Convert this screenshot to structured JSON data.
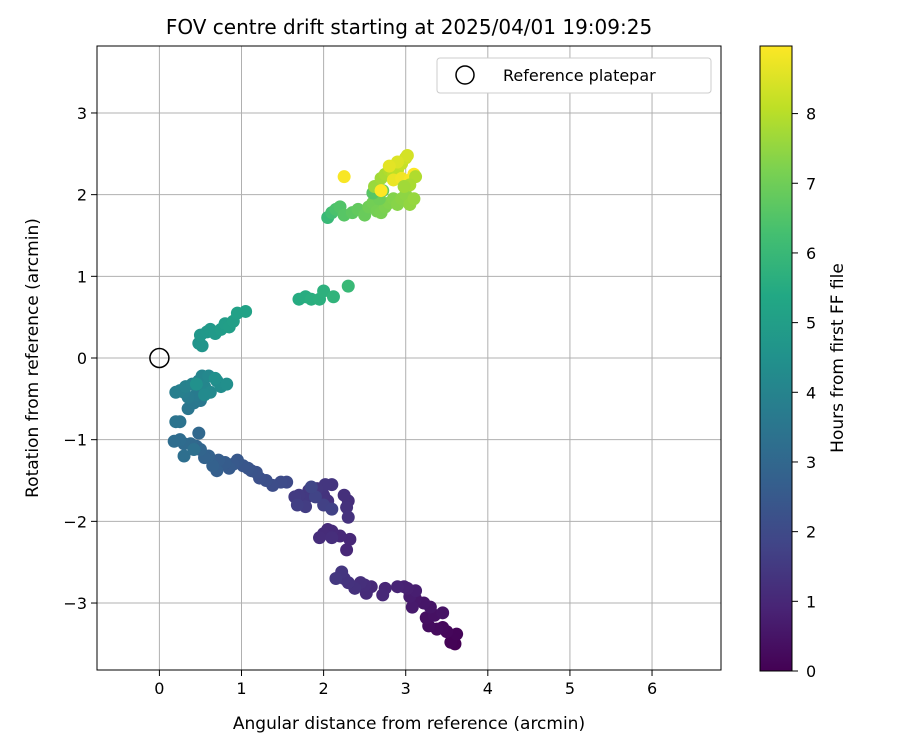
{
  "chart_data": {
    "type": "scatter",
    "title": "FOV centre drift starting at 2025/04/01 19:09:25",
    "xlabel": "Angular distance from reference (arcmin)",
    "ylabel": "Rotation from reference (arcmin)",
    "xlim": [
      -0.76,
      6.84
    ],
    "ylim": [
      -3.82,
      3.82
    ],
    "xticks": [
      0,
      1,
      2,
      3,
      4,
      5,
      6
    ],
    "yticks": [
      -3,
      -2,
      -1,
      0,
      1,
      2,
      3
    ],
    "grid": true,
    "legend": {
      "position": "top-right",
      "entries": [
        "Reference platepar"
      ]
    },
    "reference": {
      "x": 0,
      "y": 0,
      "marker": "open-circle"
    },
    "colorbar": {
      "label": "Hours from first FF file",
      "colormap": "viridis",
      "range": [
        0,
        8.97
      ],
      "ticks": [
        0,
        1,
        2,
        3,
        4,
        5,
        6,
        7,
        8
      ]
    },
    "series": [
      {
        "points": [
          [
            3.6,
            -3.5
          ],
          [
            3.55,
            -3.48
          ],
          [
            3.62,
            -3.38
          ],
          [
            3.5,
            -3.35
          ],
          [
            3.45,
            -3.3
          ],
          [
            3.38,
            -3.32
          ],
          [
            3.28,
            -3.28
          ],
          [
            3.25,
            -3.18
          ],
          [
            3.35,
            -3.15
          ],
          [
            3.45,
            -3.12
          ],
          [
            3.3,
            -3.05
          ],
          [
            3.22,
            -3.0
          ],
          [
            3.12,
            -2.95
          ],
          [
            3.08,
            -3.05
          ],
          [
            3.05,
            -2.92
          ],
          [
            3.12,
            -2.85
          ],
          [
            3.02,
            -2.82
          ],
          [
            2.98,
            -2.8
          ],
          [
            2.9,
            -2.8
          ],
          [
            2.75,
            -2.82
          ],
          [
            2.72,
            -2.9
          ],
          [
            2.58,
            -2.8
          ],
          [
            2.52,
            -2.88
          ],
          [
            2.5,
            -2.78
          ],
          [
            2.45,
            -2.75
          ],
          [
            2.38,
            -2.82
          ],
          [
            2.3,
            -2.75
          ],
          [
            2.25,
            -2.7
          ],
          [
            2.22,
            -2.62
          ],
          [
            2.15,
            -2.7
          ],
          [
            2.28,
            -2.35
          ],
          [
            2.32,
            -2.22
          ],
          [
            2.2,
            -2.18
          ],
          [
            2.1,
            -2.12
          ],
          [
            2.05,
            -2.1
          ],
          [
            2.0,
            -2.15
          ],
          [
            1.95,
            -2.2
          ],
          [
            2.1,
            -2.2
          ],
          [
            2.3,
            -1.75
          ],
          [
            2.25,
            -1.68
          ],
          [
            2.28,
            -1.83
          ],
          [
            2.3,
            -1.95
          ],
          [
            2.05,
            -1.75
          ],
          [
            2.0,
            -1.68
          ],
          [
            1.95,
            -1.62
          ],
          [
            2.1,
            -1.55
          ],
          [
            2.02,
            -1.55
          ],
          [
            1.92,
            -1.6
          ],
          [
            1.82,
            -1.62
          ],
          [
            1.78,
            -1.72
          ],
          [
            1.7,
            -1.68
          ],
          [
            1.65,
            -1.7
          ],
          [
            1.78,
            -1.82
          ],
          [
            1.68,
            -1.8
          ],
          [
            2.0,
            -1.8
          ],
          [
            2.1,
            -1.85
          ],
          [
            1.9,
            -1.7
          ],
          [
            1.85,
            -1.58
          ],
          [
            1.55,
            -1.52
          ],
          [
            1.48,
            -1.52
          ],
          [
            1.38,
            -1.56
          ],
          [
            1.3,
            -1.5
          ],
          [
            1.22,
            -1.47
          ],
          [
            1.18,
            -1.4
          ],
          [
            1.12,
            -1.38
          ],
          [
            1.08,
            -1.35
          ],
          [
            1.02,
            -1.32
          ],
          [
            0.95,
            -1.25
          ],
          [
            0.9,
            -1.3
          ],
          [
            0.85,
            -1.35
          ],
          [
            0.8,
            -1.28
          ],
          [
            0.72,
            -1.25
          ],
          [
            0.7,
            -1.38
          ],
          [
            0.65,
            -1.32
          ],
          [
            0.6,
            -1.2
          ],
          [
            0.55,
            -1.22
          ],
          [
            0.5,
            -1.12
          ],
          [
            0.45,
            -1.08
          ],
          [
            0.48,
            -0.92
          ],
          [
            0.38,
            -1.05
          ],
          [
            0.3,
            -1.05
          ],
          [
            0.25,
            -1.0
          ],
          [
            0.18,
            -1.02
          ],
          [
            0.3,
            -1.2
          ],
          [
            0.42,
            -1.12
          ],
          [
            0.25,
            -0.78
          ],
          [
            0.2,
            -0.78
          ],
          [
            0.35,
            -0.62
          ],
          [
            0.42,
            -0.55
          ],
          [
            0.5,
            -0.52
          ],
          [
            0.45,
            -0.45
          ],
          [
            0.35,
            -0.48
          ],
          [
            0.3,
            -0.42
          ],
          [
            0.2,
            -0.42
          ],
          [
            0.25,
            -0.4
          ],
          [
            0.32,
            -0.35
          ],
          [
            0.4,
            -0.32
          ],
          [
            0.48,
            -0.28
          ],
          [
            0.52,
            -0.22
          ],
          [
            0.55,
            -0.35
          ],
          [
            0.6,
            -0.22
          ],
          [
            0.62,
            -0.42
          ],
          [
            0.55,
            -0.45
          ],
          [
            0.7,
            -0.28
          ],
          [
            0.75,
            -0.35
          ],
          [
            0.82,
            -0.32
          ],
          [
            0.68,
            -0.25
          ],
          [
            0.45,
            -0.32
          ],
          [
            0.48,
            0.18
          ],
          [
            0.52,
            0.15
          ],
          [
            0.5,
            0.28
          ],
          [
            0.58,
            0.32
          ],
          [
            0.62,
            0.35
          ],
          [
            0.68,
            0.3
          ],
          [
            0.75,
            0.35
          ],
          [
            0.8,
            0.42
          ],
          [
            0.85,
            0.38
          ],
          [
            0.9,
            0.45
          ],
          [
            0.95,
            0.55
          ],
          [
            1.05,
            0.57
          ],
          [
            1.7,
            0.72
          ],
          [
            1.78,
            0.75
          ],
          [
            1.85,
            0.72
          ],
          [
            1.95,
            0.72
          ],
          [
            2.0,
            0.82
          ],
          [
            2.12,
            0.75
          ],
          [
            2.3,
            0.88
          ],
          [
            2.05,
            1.72
          ],
          [
            2.1,
            1.78
          ],
          [
            2.15,
            1.82
          ],
          [
            2.2,
            1.85
          ],
          [
            2.25,
            1.75
          ],
          [
            2.35,
            1.78
          ],
          [
            2.42,
            1.82
          ],
          [
            2.5,
            1.75
          ],
          [
            2.55,
            1.85
          ],
          [
            2.6,
            1.9
          ],
          [
            2.65,
            1.8
          ],
          [
            2.7,
            1.78
          ],
          [
            2.75,
            1.85
          ],
          [
            2.8,
            1.9
          ],
          [
            2.85,
            1.95
          ],
          [
            2.9,
            1.88
          ],
          [
            2.95,
            1.95
          ],
          [
            3.0,
            2.0
          ],
          [
            3.05,
            1.88
          ],
          [
            3.1,
            1.95
          ],
          [
            2.68,
            1.95
          ],
          [
            2.72,
            2.05
          ],
          [
            2.6,
            2.02
          ],
          [
            2.62,
            2.1
          ],
          [
            2.7,
            2.2
          ],
          [
            2.75,
            2.25
          ],
          [
            2.8,
            2.3
          ],
          [
            2.85,
            2.25
          ],
          [
            2.9,
            2.3
          ],
          [
            2.95,
            2.38
          ],
          [
            3.0,
            2.45
          ],
          [
            3.02,
            2.48
          ],
          [
            2.9,
            2.4
          ],
          [
            2.8,
            2.35
          ],
          [
            2.85,
            2.18
          ],
          [
            2.95,
            2.2
          ],
          [
            3.05,
            2.18
          ],
          [
            3.1,
            2.25
          ],
          [
            3.12,
            2.22
          ],
          [
            3.05,
            2.12
          ],
          [
            2.98,
            2.1
          ],
          [
            2.7,
            2.05
          ],
          [
            2.25,
            2.22
          ]
        ],
        "hours": [
          0.0,
          0.05,
          0.1,
          0.15,
          0.2,
          0.25,
          0.3,
          0.35,
          0.4,
          0.45,
          0.5,
          0.55,
          0.6,
          0.65,
          0.7,
          0.75,
          0.8,
          0.85,
          0.9,
          0.95,
          1.0,
          1.05,
          1.1,
          1.15,
          1.2,
          1.25,
          1.3,
          1.35,
          1.4,
          1.45,
          1.0,
          1.02,
          1.05,
          1.08,
          1.1,
          1.12,
          1.15,
          1.18,
          1.2,
          1.22,
          1.25,
          1.28,
          1.3,
          1.32,
          1.35,
          1.38,
          1.4,
          1.42,
          1.45,
          1.48,
          1.5,
          1.55,
          1.6,
          1.65,
          1.7,
          1.75,
          1.8,
          1.85,
          2.0,
          2.05,
          2.1,
          2.15,
          2.2,
          2.25,
          2.3,
          2.35,
          2.4,
          2.45,
          2.5,
          2.55,
          2.6,
          2.65,
          2.7,
          2.75,
          2.8,
          2.85,
          2.9,
          2.95,
          3.0,
          3.05,
          3.1,
          3.15,
          3.2,
          3.25,
          3.3,
          3.4,
          3.45,
          3.5,
          3.55,
          3.6,
          3.65,
          3.7,
          3.75,
          3.8,
          3.85,
          3.9,
          3.95,
          4.0,
          4.05,
          4.1,
          4.15,
          4.2,
          4.25,
          4.3,
          4.35,
          4.4,
          4.45,
          4.5,
          4.6,
          4.65,
          4.7,
          4.75,
          4.8,
          4.85,
          4.9,
          4.95,
          5.0,
          5.05,
          5.1,
          5.15,
          5.5,
          5.55,
          5.6,
          5.65,
          5.7,
          5.8,
          6.0,
          6.0,
          6.2,
          6.4,
          6.5,
          6.6,
          6.7,
          6.8,
          6.9,
          7.0,
          7.05,
          7.1,
          7.15,
          7.2,
          7.25,
          7.3,
          7.35,
          7.4,
          7.45,
          7.5,
          7.55,
          7.0,
          6.8,
          6.6,
          7.6,
          7.7,
          7.8,
          7.9,
          8.0,
          8.1,
          8.2,
          8.3,
          8.4,
          8.5,
          8.6,
          8.7,
          8.8,
          8.9,
          8.95,
          7.9,
          7.8,
          7.7,
          8.97,
          8.9
        ]
      }
    ]
  }
}
